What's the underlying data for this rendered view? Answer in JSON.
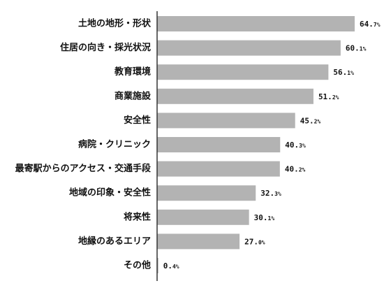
{
  "chart_data": {
    "type": "bar",
    "orientation": "horizontal",
    "categories": [
      "土地の地形・形状",
      "住居の向き・採光状況",
      "教育環境",
      "商業施設",
      "安全性",
      "病院・クリニック",
      "最寄駅からのアクセス・交通手段",
      "地域の印象・安全性",
      "将来性",
      "地縁のあるエリア",
      "その他"
    ],
    "values": [
      64.7,
      60.1,
      56.1,
      51.2,
      45.2,
      40.3,
      40.2,
      32.3,
      30.1,
      27.0,
      0.4
    ],
    "value_labels": [
      {
        "int": "64.",
        "dec": "7%"
      },
      {
        "int": "60.",
        "dec": "1%"
      },
      {
        "int": "56.",
        "dec": "1%"
      },
      {
        "int": "51.",
        "dec": "2%"
      },
      {
        "int": "45.",
        "dec": "2%"
      },
      {
        "int": "40.",
        "dec": "3%"
      },
      {
        "int": "40.",
        "dec": "2%"
      },
      {
        "int": "32.",
        "dec": "3%"
      },
      {
        "int": "30.",
        "dec": "1%"
      },
      {
        "int": "27.",
        "dec": "0%"
      },
      {
        "int": "0.",
        "dec": "4%"
      }
    ],
    "title": "",
    "xlabel": "",
    "ylabel": "",
    "xlim": [
      0,
      64.7
    ],
    "grid": false,
    "bar_color": "#b3b3b3",
    "axis_color": "#333333"
  }
}
